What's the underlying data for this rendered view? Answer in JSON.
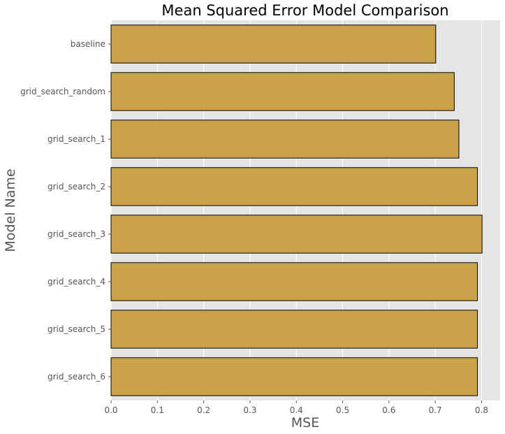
{
  "chart_data": {
    "type": "bar",
    "orientation": "horizontal",
    "title": "Mean Squared Error Model Comparison",
    "xlabel": "MSE",
    "ylabel": "Model Name",
    "categories": [
      "baseline",
      "grid_search_random",
      "grid_search_1",
      "grid_search_2",
      "grid_search_3",
      "grid_search_4",
      "grid_search_5",
      "grid_search_6"
    ],
    "values": [
      0.701,
      0.741,
      0.751,
      0.791,
      0.801,
      0.791,
      0.791,
      0.791
    ],
    "xlim": [
      0.0,
      0.84
    ],
    "xticks": [
      "0.0",
      "0.1",
      "0.2",
      "0.3",
      "0.4",
      "0.5",
      "0.6",
      "0.7",
      "0.8"
    ],
    "grid": true,
    "bar_color": "#c9a24a",
    "bar_edge_color": "#000000",
    "background_color": "#e5e5e5",
    "grid_color": "#ffffff"
  }
}
